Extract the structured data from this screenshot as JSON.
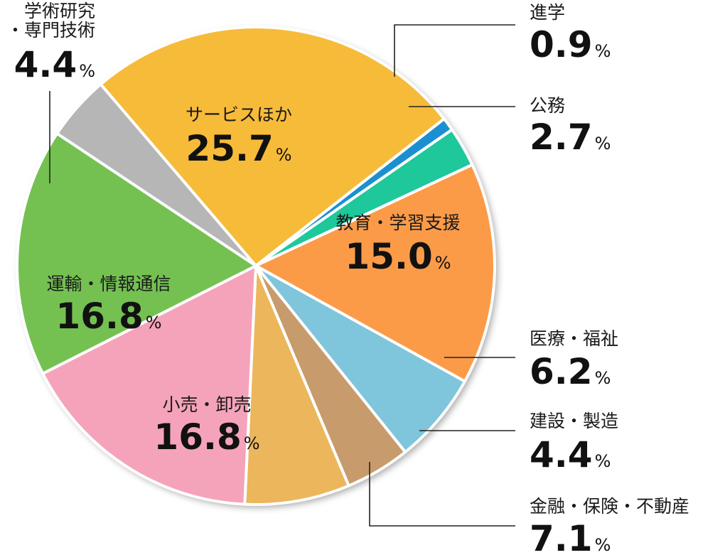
{
  "chart_data": {
    "type": "pie",
    "title": "",
    "unit": "%",
    "slices": [
      {
        "label": "進学",
        "value": 0.9,
        "value_text": "0.9",
        "color": "#1b90d1"
      },
      {
        "label": "公務",
        "value": 2.7,
        "value_text": "2.7",
        "color": "#1ec89a"
      },
      {
        "label": "教育・学習支援",
        "value": 15.0,
        "value_text": "15.0",
        "color": "#fb9b48"
      },
      {
        "label": "医療・福祉",
        "value": 6.2,
        "value_text": "6.2",
        "color": "#7fc5dc"
      },
      {
        "label": "建設・製造",
        "value": 4.4,
        "value_text": "4.4",
        "color": "#c79b6b"
      },
      {
        "label": "金融・保険・不動産",
        "value": 7.1,
        "value_text": "7.1",
        "color": "#ebb65c"
      },
      {
        "label": "小売・卸売",
        "value": 16.8,
        "value_text": "16.8",
        "color": "#f5a3ba"
      },
      {
        "label": "運輸・情報通信",
        "value": 16.8,
        "value_text": "16.8",
        "color": "#74c152"
      },
      {
        "label": "学術研究\n・専門技術",
        "value": 4.4,
        "value_text": "4.4",
        "color": "#b6b6b6"
      },
      {
        "label": "サービスほか",
        "value": 25.7,
        "value_text": "25.7",
        "color": "#f7bb3a"
      }
    ]
  }
}
